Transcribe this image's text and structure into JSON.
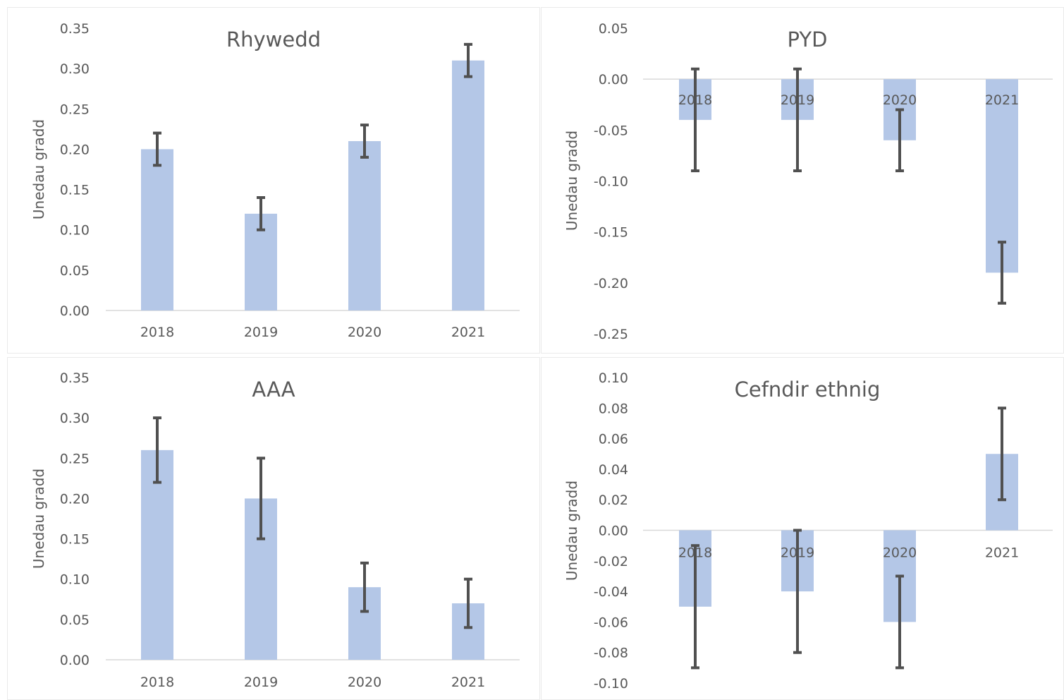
{
  "colors": {
    "bar": "#b4c7e7",
    "error_bar": "#505050",
    "axis": "#d9d9d9",
    "text": "#595959"
  },
  "chart_data": [
    {
      "type": "bar",
      "title": "Rhywedd",
      "ylabel": "Unedau gradd",
      "categories": [
        "2018",
        "2019",
        "2020",
        "2021"
      ],
      "values": [
        0.2,
        0.12,
        0.21,
        0.31
      ],
      "error_low": [
        0.18,
        0.1,
        0.19,
        0.29
      ],
      "error_high": [
        0.22,
        0.14,
        0.23,
        0.33
      ],
      "ylim": [
        0,
        0.35
      ],
      "yticks": [
        "0.35",
        "0.30",
        "0.25",
        "0.20",
        "0.15",
        "0.10",
        "0.05",
        "0.00"
      ],
      "category_labels_position": "bottom",
      "grid": false
    },
    {
      "type": "bar",
      "title": "PYD",
      "ylabel": "Unedau gradd",
      "categories": [
        "2018",
        "2019",
        "2020",
        "2021"
      ],
      "values": [
        -0.04,
        -0.04,
        -0.06,
        -0.19
      ],
      "error_low": [
        -0.09,
        -0.09,
        -0.09,
        -0.22
      ],
      "error_high": [
        0.01,
        0.01,
        -0.03,
        -0.16
      ],
      "ylim": [
        -0.25,
        0.05
      ],
      "yticks": [
        "0.05",
        "0.00",
        "-0.05",
        "-0.10",
        "-0.15",
        "-0.20",
        "-0.25"
      ],
      "category_labels_position": "at-zero",
      "grid": false
    },
    {
      "type": "bar",
      "title": "AAA",
      "ylabel": "Unedau gradd",
      "categories": [
        "2018",
        "2019",
        "2020",
        "2021"
      ],
      "values": [
        0.26,
        0.2,
        0.09,
        0.07
      ],
      "error_low": [
        0.22,
        0.15,
        0.06,
        0.04
      ],
      "error_high": [
        0.3,
        0.25,
        0.12,
        0.1
      ],
      "ylim": [
        0,
        0.35
      ],
      "yticks": [
        "0.35",
        "0.30",
        "0.25",
        "0.20",
        "0.15",
        "0.10",
        "0.05",
        "0.00"
      ],
      "category_labels_position": "bottom",
      "grid": false
    },
    {
      "type": "bar",
      "title": "Cefndir ethnig",
      "ylabel": "Unedau gradd",
      "categories": [
        "2018",
        "2019",
        "2020",
        "2021"
      ],
      "values": [
        -0.05,
        -0.04,
        -0.06,
        0.05
      ],
      "error_low": [
        -0.09,
        -0.08,
        -0.09,
        0.02
      ],
      "error_high": [
        -0.01,
        0.0,
        -0.03,
        0.08
      ],
      "ylim": [
        -0.1,
        0.1
      ],
      "yticks": [
        "0.10",
        "0.08",
        "0.06",
        "0.04",
        "0.02",
        "0.00",
        "-0.02",
        "-0.04",
        "-0.06",
        "-0.08",
        "-0.10"
      ],
      "category_labels_position": "at-zero",
      "grid": false
    }
  ]
}
